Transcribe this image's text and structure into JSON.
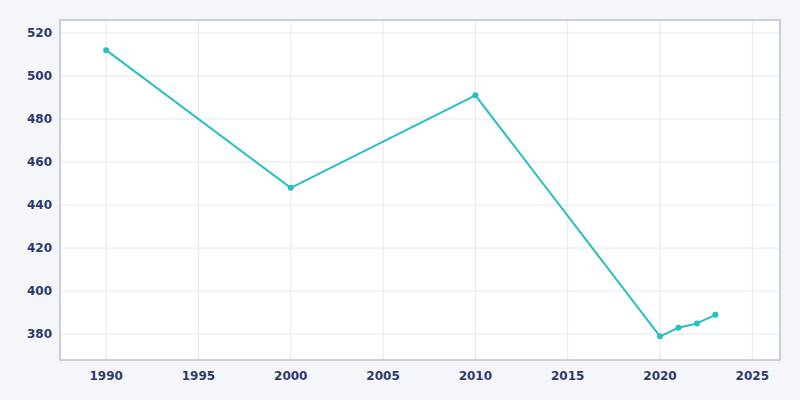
{
  "chart_data": {
    "type": "line",
    "x": [
      1990,
      2000,
      2010,
      2020,
      2021,
      2022,
      2023
    ],
    "values": [
      512,
      448,
      491,
      379,
      383,
      385,
      389
    ],
    "color": "#2ABFBF",
    "marker": "circle",
    "xlim": [
      1987.5,
      2026.5
    ],
    "ylim": [
      368,
      526
    ],
    "xticks": [
      1990,
      1995,
      2000,
      2005,
      2010,
      2015,
      2020,
      2025
    ],
    "yticks": [
      380,
      400,
      420,
      440,
      460,
      480,
      500,
      520
    ],
    "grid": true
  }
}
